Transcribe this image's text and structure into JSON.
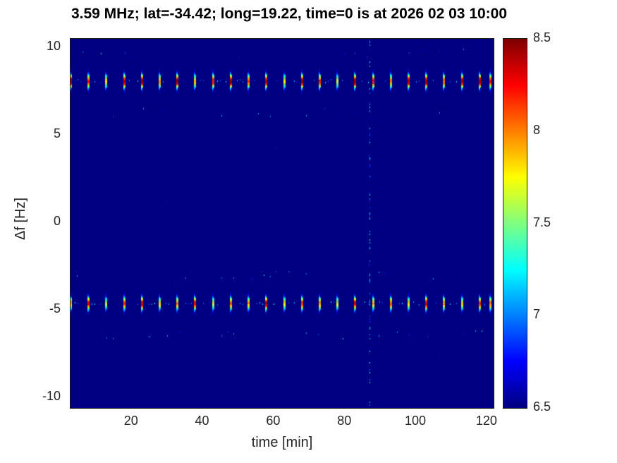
{
  "chart_data": {
    "type": "heatmap",
    "title": "3.59 MHz;  lat=-34.42; long=19.22, time=0 is at 2026 02 03 10:00",
    "xlabel": "time [min]",
    "ylabel": "Δf [Hz]",
    "xlim": [
      3,
      122
    ],
    "ylim": [
      -10.6,
      10.5
    ],
    "xticks": [
      20,
      40,
      60,
      80,
      100,
      120
    ],
    "yticks": [
      -10,
      -5,
      0,
      5,
      10
    ],
    "grid": false,
    "colormap": "jet",
    "color_range": [
      6.5,
      8.5
    ],
    "colorbar_ticks": [
      6.5,
      7,
      7.5,
      8,
      8.5
    ],
    "colorbar_position": "right",
    "background_value": 6.5,
    "bands": [
      {
        "name": "upper-doppler-band",
        "center_hz": 8.1,
        "sigma_hz": 0.4,
        "bursts": [
          [
            3,
            8.5
          ],
          [
            8,
            8.2
          ],
          [
            13,
            7.8
          ],
          [
            18,
            8.4
          ],
          [
            23,
            8.5
          ],
          [
            28,
            8.0
          ],
          [
            33,
            8.5
          ],
          [
            38,
            7.9
          ],
          [
            43,
            8.3
          ],
          [
            48,
            8.5
          ],
          [
            53,
            8.1
          ],
          [
            58,
            8.4
          ],
          [
            63,
            7.8
          ],
          [
            68,
            8.5
          ],
          [
            73,
            8.2
          ],
          [
            78,
            7.7
          ],
          [
            83,
            8.5
          ],
          [
            88,
            8.3
          ],
          [
            93,
            8.0
          ],
          [
            98,
            8.4
          ],
          [
            103,
            8.5
          ],
          [
            108,
            8.1
          ],
          [
            113,
            8.4
          ],
          [
            118,
            8.5
          ],
          [
            121,
            8.2
          ]
        ]
      },
      {
        "name": "lower-doppler-band",
        "center_hz": -4.6,
        "sigma_hz": 0.38,
        "bursts": [
          [
            3,
            7.9
          ],
          [
            8,
            8.3
          ],
          [
            13,
            7.6
          ],
          [
            18,
            8.1
          ],
          [
            23,
            8.4
          ],
          [
            28,
            7.8
          ],
          [
            33,
            8.0
          ],
          [
            38,
            8.3
          ],
          [
            43,
            7.7
          ],
          [
            48,
            8.1
          ],
          [
            53,
            7.9
          ],
          [
            58,
            8.4
          ],
          [
            63,
            7.8
          ],
          [
            68,
            8.2
          ],
          [
            73,
            8.0
          ],
          [
            78,
            7.7
          ],
          [
            83,
            8.3
          ],
          [
            88,
            7.9
          ],
          [
            93,
            8.1
          ],
          [
            98,
            7.8
          ],
          [
            103,
            8.4
          ],
          [
            108,
            8.0
          ],
          [
            113,
            7.8
          ],
          [
            118,
            8.2
          ],
          [
            121,
            8.0
          ]
        ]
      }
    ],
    "vertical_artifact": {
      "t_min": 87,
      "value": 7.3
    },
    "noise_seed": 42
  }
}
